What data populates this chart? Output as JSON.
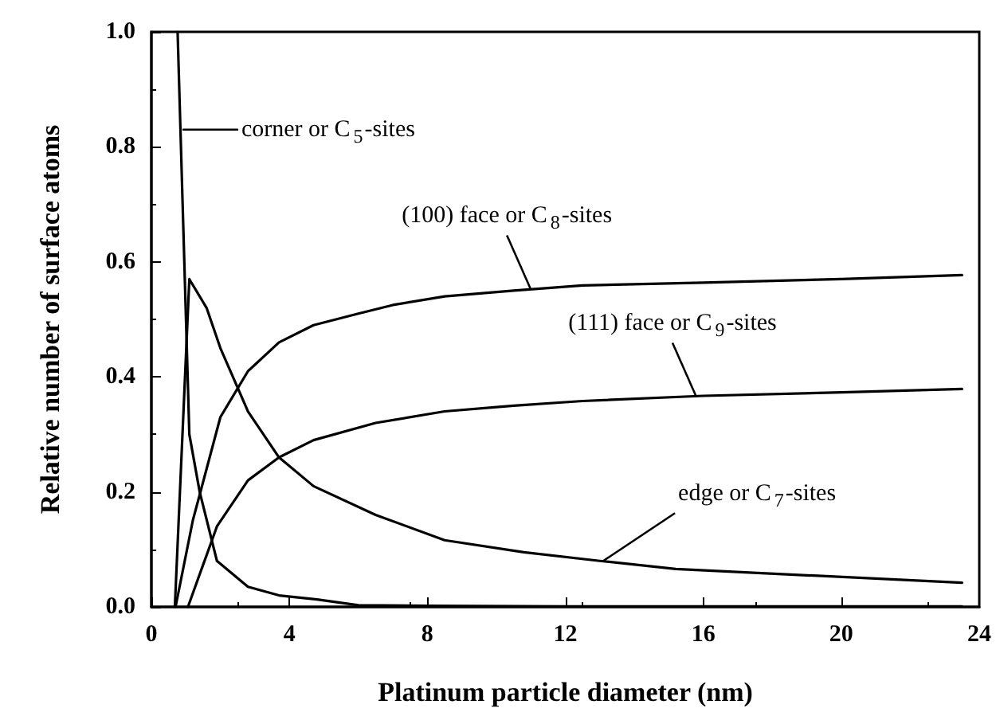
{
  "chart_data": {
    "type": "line",
    "xlabel": "Platinum particle diameter (nm)",
    "ylabel": "Relative number of surface atoms",
    "xlim": [
      0,
      24
    ],
    "xticks": [
      0,
      4,
      8,
      12,
      16,
      20,
      24
    ],
    "ylim": [
      0,
      1
    ],
    "yticks": [
      {
        "value": 0,
        "label": "0.0"
      },
      {
        "value": 0.2,
        "label": "0.2"
      },
      {
        "value": 0.4,
        "label": "0.4"
      },
      {
        "value": 0.6,
        "label": "0.6"
      },
      {
        "value": 0.8,
        "label": "0.8"
      },
      {
        "value": 1,
        "label": "1.0"
      }
    ],
    "grid": false,
    "marker": "none",
    "line_style": "solid",
    "series": [
      {
        "color": "#000000",
        "x": [
          0.76,
          1.1,
          1.4,
          1.9,
          2.8,
          3.7,
          4.8,
          6,
          8,
          12,
          16,
          20,
          23.5
        ],
        "values": [
          1,
          0.3,
          0.2,
          0.08,
          0.035,
          0.02,
          0.013,
          0.003,
          0.002,
          0.001,
          0.001,
          0.001,
          0.001
        ]
      },
      {
        "color": "#000000",
        "x": [
          0.68,
          1.1,
          1.6,
          2,
          2.8,
          3.7,
          4.7,
          6.5,
          8.5,
          10.8,
          13,
          15.2,
          19,
          23.5
        ],
        "values": [
          0,
          0.57,
          0.52,
          0.45,
          0.34,
          0.26,
          0.21,
          0.16,
          0.116,
          0.095,
          0.08,
          0.066,
          0.055,
          0.042
        ]
      },
      {
        "color": "#000000",
        "x": [
          0.7,
          1.2,
          2,
          2.8,
          3.7,
          4.7,
          6,
          7,
          8.5,
          10.5,
          12.5,
          16,
          20,
          23.5
        ],
        "values": [
          0,
          0.15,
          0.33,
          0.41,
          0.46,
          0.49,
          0.51,
          0.525,
          0.54,
          0.55,
          0.559,
          0.564,
          0.57,
          0.577
        ]
      },
      {
        "color": "#000000",
        "x": [
          1.06,
          1.9,
          2.8,
          3.7,
          4.7,
          6.5,
          8.5,
          10.5,
          12.5,
          16,
          20,
          23.5
        ],
        "values": [
          0,
          0.14,
          0.22,
          0.26,
          0.29,
          0.32,
          0.34,
          0.35,
          0.358,
          0.367,
          0.373,
          0.379
        ]
      }
    ],
    "annotations": [
      {
        "text": "corner or C$_{5}$-sites",
        "x": 0.9,
        "y": 0.83
      },
      {
        "text": "edge or C$_{7}$-sites",
        "x": 13.1,
        "y": 0.08
      },
      {
        "text": "(100) face or C$_{8}$-sites",
        "x": 11,
        "y": 0.552
      },
      {
        "text": "(111) face or C$_{9}$-sites",
        "x": 15.8,
        "y": 0.365
      }
    ]
  }
}
